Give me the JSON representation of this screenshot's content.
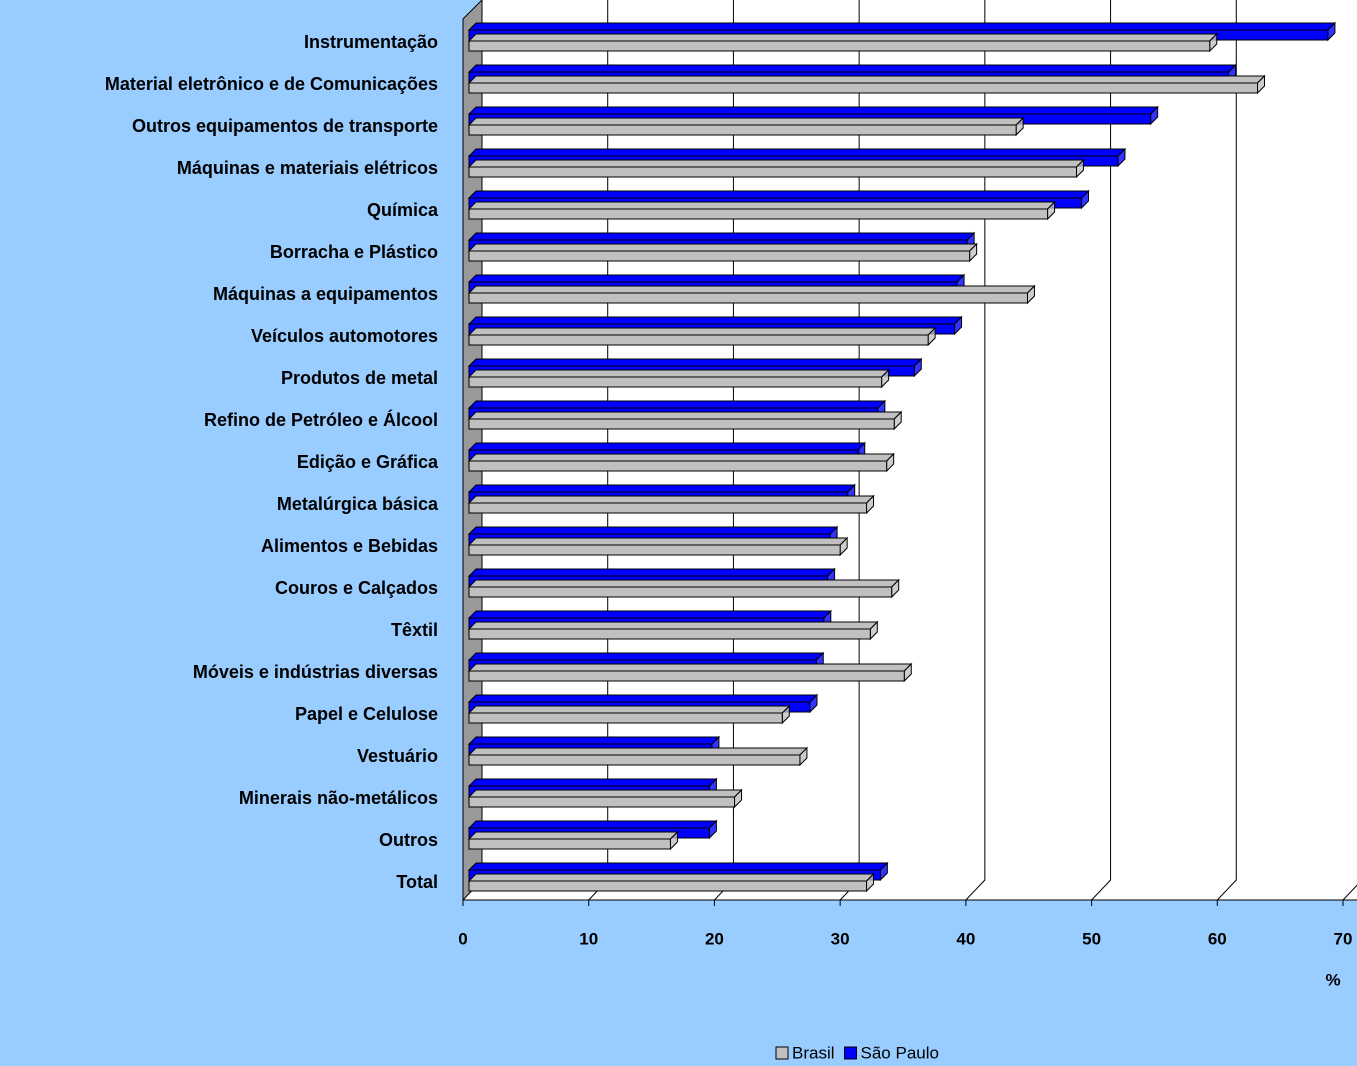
{
  "chart_data": {
    "type": "bar3d_horizontal",
    "categories": [
      "Instrumentação",
      "Material eletrônico e de Comunicações",
      "Outros equipamentos de transporte",
      "Máquinas e materiais elétricos",
      "Química",
      "Borracha e Plástico",
      "Máquinas a equipamentos",
      "Veículos automotores",
      "Produtos de metal",
      "Refino de Petróleo e Álcool",
      "Edição e Gráfica",
      "Metalúrgica básica",
      "Alimentos e Bebidas",
      "Couros e Calçados",
      "Têxtil",
      "Móveis e indústrias diversas",
      "Papel e Celulose",
      "Vestuário",
      "Minerais não-metálicos",
      "Outros",
      "Total"
    ],
    "series": [
      {
        "name": "São Paulo",
        "color": "#0000ff",
        "values": [
          68.8,
          60.9,
          54.7,
          52.1,
          49.2,
          40.1,
          39.3,
          39.1,
          35.9,
          33.0,
          31.4,
          30.6,
          29.2,
          29.0,
          28.7,
          28.1,
          27.6,
          19.8,
          19.6,
          19.6,
          33.2
        ]
      },
      {
        "name": "Brasil",
        "color": "#c0c0c0",
        "values": [
          59.4,
          63.2,
          44.0,
          48.8,
          46.5,
          40.3,
          44.9,
          37.0,
          33.3,
          34.3,
          33.7,
          32.1,
          30.0,
          34.1,
          32.4,
          35.1,
          25.4,
          26.8,
          21.6,
          16.5,
          32.1
        ]
      }
    ],
    "xlabel": "%",
    "xlim": [
      0,
      70
    ],
    "xticks": [
      0,
      10,
      20,
      30,
      40,
      50,
      60,
      70
    ],
    "grid": true,
    "legend": "bottom"
  }
}
